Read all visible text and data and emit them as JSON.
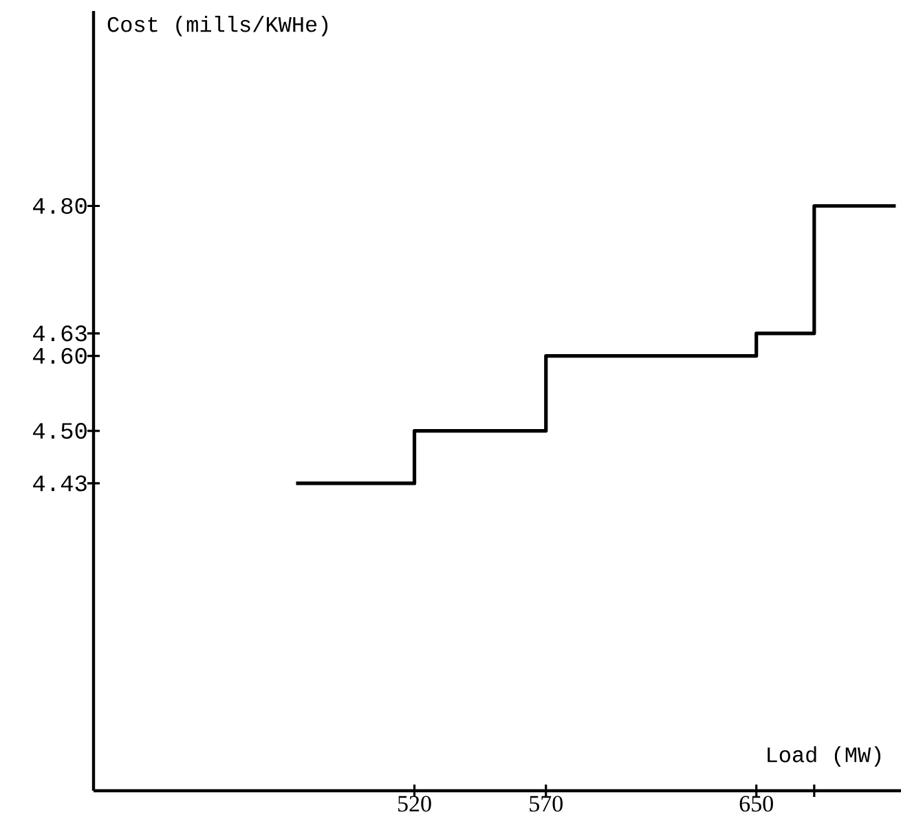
{
  "chart_data": {
    "type": "step",
    "xlabel": "Load (MW)",
    "ylabel": "Cost (mills/KWHe)",
    "x": [
      475,
      520,
      570,
      650,
      672,
      703
    ],
    "series": [
      {
        "color": "#000000",
        "values": [
          4.43,
          4.5,
          4.6,
          4.63,
          4.8,
          4.8
        ]
      }
    ],
    "xlim": [
      398,
      705
    ],
    "ylim": [
      4.02,
      5.06
    ],
    "xticks": [
      520,
      570,
      650,
      {
        "value": 672,
        "label": null
      }
    ],
    "yticks": [
      4.43,
      {
        "value": 4.5,
        "label": "4.50"
      },
      {
        "value": 4.6,
        "label": "4.60"
      },
      4.63,
      {
        "value": 4.8,
        "label": "4.80"
      }
    ],
    "grid": false,
    "legend": false,
    "marker": "none",
    "line_style": "solid"
  }
}
